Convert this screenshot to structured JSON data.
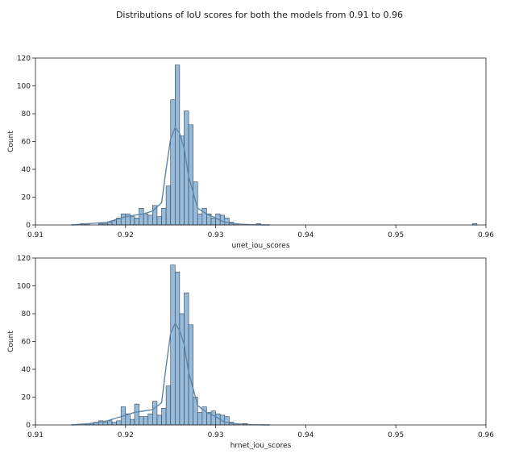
{
  "figure": {
    "title": "Distributions of IoU scores for both the models from 0.91 to 0.96"
  },
  "colors": {
    "bar_fill": "#86aed3",
    "bar_edge": "#2f4558",
    "kde_line": "#5e86a8",
    "axis": "#222222"
  },
  "chart_data": [
    {
      "type": "bar",
      "title": "",
      "xlabel": "unet_iou_scores",
      "ylabel": "Count",
      "xlim": [
        0.91,
        0.96
      ],
      "ylim": [
        0,
        120
      ],
      "xticks": [
        0.91,
        0.92,
        0.93,
        0.94,
        0.95,
        0.96
      ],
      "xtick_labels": [
        "0.91",
        "0.92",
        "0.93",
        "0.94",
        "0.95",
        "0.96"
      ],
      "yticks": [
        0,
        20,
        40,
        60,
        80,
        100,
        120
      ],
      "ytick_labels": [
        "0",
        "20",
        "40",
        "60",
        "80",
        "100",
        "120"
      ],
      "grid": false,
      "bin_width": 0.0005,
      "bins": [
        {
          "x": 0.915,
          "count": 1
        },
        {
          "x": 0.9155,
          "count": 1
        },
        {
          "x": 0.917,
          "count": 1
        },
        {
          "x": 0.9175,
          "count": 1
        },
        {
          "x": 0.918,
          "count": 2
        },
        {
          "x": 0.9185,
          "count": 3
        },
        {
          "x": 0.919,
          "count": 5
        },
        {
          "x": 0.9195,
          "count": 8
        },
        {
          "x": 0.92,
          "count": 8
        },
        {
          "x": 0.9205,
          "count": 6
        },
        {
          "x": 0.921,
          "count": 5
        },
        {
          "x": 0.9215,
          "count": 12
        },
        {
          "x": 0.922,
          "count": 8
        },
        {
          "x": 0.9225,
          "count": 7
        },
        {
          "x": 0.923,
          "count": 14
        },
        {
          "x": 0.9235,
          "count": 6
        },
        {
          "x": 0.924,
          "count": 12
        },
        {
          "x": 0.9245,
          "count": 28
        },
        {
          "x": 0.925,
          "count": 90
        },
        {
          "x": 0.9255,
          "count": 115
        },
        {
          "x": 0.926,
          "count": 64
        },
        {
          "x": 0.9265,
          "count": 82
        },
        {
          "x": 0.927,
          "count": 72
        },
        {
          "x": 0.9275,
          "count": 31
        },
        {
          "x": 0.928,
          "count": 8
        },
        {
          "x": 0.9285,
          "count": 12
        },
        {
          "x": 0.929,
          "count": 8
        },
        {
          "x": 0.9295,
          "count": 5
        },
        {
          "x": 0.93,
          "count": 8
        },
        {
          "x": 0.9305,
          "count": 7
        },
        {
          "x": 0.931,
          "count": 5
        },
        {
          "x": 0.9315,
          "count": 2
        },
        {
          "x": 0.932,
          "count": 1
        },
        {
          "x": 0.9345,
          "count": 1
        },
        {
          "x": 0.9585,
          "count": 1
        }
      ],
      "kde": {
        "x": [
          0.914,
          0.916,
          0.918,
          0.919,
          0.92,
          0.921,
          0.922,
          0.923,
          0.924,
          0.9245,
          0.925,
          0.9255,
          0.926,
          0.9265,
          0.927,
          0.928,
          0.929,
          0.93,
          0.931,
          0.932,
          0.933,
          0.934,
          0.936
        ],
        "y": [
          0,
          1,
          2,
          4,
          6,
          7,
          8,
          10,
          16,
          40,
          62,
          70,
          66,
          55,
          35,
          12,
          8,
          5,
          2,
          1,
          0.5,
          0.2,
          0
        ]
      }
    },
    {
      "type": "bar",
      "title": "",
      "xlabel": "hrnet_iou_scores",
      "ylabel": "Count",
      "xlim": [
        0.91,
        0.96
      ],
      "ylim": [
        0,
        120
      ],
      "xticks": [
        0.91,
        0.92,
        0.93,
        0.94,
        0.95,
        0.96
      ],
      "xtick_labels": [
        "0.91",
        "0.92",
        "0.93",
        "0.94",
        "0.95",
        "0.96"
      ],
      "yticks": [
        0,
        20,
        40,
        60,
        80,
        100,
        120
      ],
      "ytick_labels": [
        "0",
        "20",
        "40",
        "60",
        "80",
        "100",
        "120"
      ],
      "grid": false,
      "bin_width": 0.0005,
      "bins": [
        {
          "x": 0.9155,
          "count": 1
        },
        {
          "x": 0.916,
          "count": 1
        },
        {
          "x": 0.9165,
          "count": 2
        },
        {
          "x": 0.917,
          "count": 3
        },
        {
          "x": 0.9175,
          "count": 2
        },
        {
          "x": 0.918,
          "count": 3
        },
        {
          "x": 0.9185,
          "count": 2
        },
        {
          "x": 0.919,
          "count": 3
        },
        {
          "x": 0.9195,
          "count": 13
        },
        {
          "x": 0.92,
          "count": 8
        },
        {
          "x": 0.9205,
          "count": 4
        },
        {
          "x": 0.921,
          "count": 15
        },
        {
          "x": 0.9215,
          "count": 6
        },
        {
          "x": 0.922,
          "count": 6
        },
        {
          "x": 0.9225,
          "count": 8
        },
        {
          "x": 0.923,
          "count": 17
        },
        {
          "x": 0.9235,
          "count": 7
        },
        {
          "x": 0.924,
          "count": 12
        },
        {
          "x": 0.9245,
          "count": 28
        },
        {
          "x": 0.925,
          "count": 115
        },
        {
          "x": 0.9255,
          "count": 110
        },
        {
          "x": 0.926,
          "count": 80
        },
        {
          "x": 0.9265,
          "count": 95
        },
        {
          "x": 0.927,
          "count": 72
        },
        {
          "x": 0.9275,
          "count": 20
        },
        {
          "x": 0.928,
          "count": 9
        },
        {
          "x": 0.9285,
          "count": 13
        },
        {
          "x": 0.929,
          "count": 9
        },
        {
          "x": 0.9295,
          "count": 10
        },
        {
          "x": 0.93,
          "count": 8
        },
        {
          "x": 0.9305,
          "count": 7
        },
        {
          "x": 0.931,
          "count": 6
        },
        {
          "x": 0.9315,
          "count": 2
        },
        {
          "x": 0.932,
          "count": 1
        },
        {
          "x": 0.933,
          "count": 1
        }
      ],
      "kde": {
        "x": [
          0.914,
          0.916,
          0.918,
          0.919,
          0.92,
          0.921,
          0.922,
          0.923,
          0.924,
          0.9245,
          0.925,
          0.9255,
          0.926,
          0.9265,
          0.927,
          0.928,
          0.929,
          0.93,
          0.931,
          0.932,
          0.933,
          0.934,
          0.936
        ],
        "y": [
          0,
          1,
          3,
          5,
          7,
          9,
          10,
          11,
          16,
          42,
          66,
          73,
          68,
          58,
          38,
          14,
          9,
          6,
          2,
          1,
          0.5,
          0.2,
          0
        ]
      }
    }
  ]
}
